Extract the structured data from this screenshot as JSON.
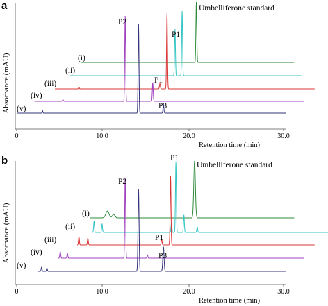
{
  "chart_data": [
    {
      "type": "line",
      "panel": "a",
      "ylabel": "Absorbance (mAU)",
      "xlabel": "Retention time (min)",
      "xticks": [
        "0",
        "10.0",
        "20.0",
        "30.0"
      ],
      "xlim": [
        0,
        30
      ],
      "grid": false,
      "series": [
        {
          "name": "(i)",
          "color": "#2e8b3a",
          "start": 7.2,
          "end": 31.2,
          "peaks": [
            {
              "x": 20.2,
              "h": 1.0,
              "w": 0.05
            }
          ]
        },
        {
          "name": "(ii)",
          "color": "#33c4c4",
          "start": 6.0,
          "end": 32.0,
          "peaks": [
            {
              "x": 17.8,
              "h": 0.72,
              "w": 0.05
            },
            {
              "x": 18.6,
              "h": 1.0,
              "w": 0.05
            }
          ]
        },
        {
          "name": "(iii)",
          "color": "#d93434",
          "start": 4.3,
          "end": 33.5,
          "peaks": [
            {
              "x": 7.0,
              "h": 0.02,
              "w": 0.05
            },
            {
              "x": 16.1,
              "h": 0.07,
              "w": 0.05
            },
            {
              "x": 16.9,
              "h": 1.0,
              "w": 0.05
            }
          ]
        },
        {
          "name": "(iv)",
          "color": "#a040c0",
          "start": 2.0,
          "end": 32.3,
          "peaks": [
            {
              "x": 5.2,
              "h": 0.02,
              "w": 0.05
            },
            {
              "x": 12.2,
              "h": 1.0,
              "w": 0.05
            },
            {
              "x": 15.3,
              "h": 0.22,
              "w": 0.05
            }
          ]
        },
        {
          "name": "(v)",
          "color": "#33337a",
          "start": 0.0,
          "end": 30.3,
          "peaks": [
            {
              "x": 2.9,
              "h": 0.03,
              "w": 0.04
            },
            {
              "x": 13.7,
              "h": 1.0,
              "w": 0.05
            },
            {
              "x": 16.5,
              "h": 0.1,
              "w": 0.05
            }
          ]
        }
      ],
      "annotations": [
        {
          "text": "Umbelliferone standard",
          "x": 20.5
        },
        {
          "text": "P2",
          "x": 11.9
        },
        {
          "text": "P1",
          "x": 18.2
        },
        {
          "text": "P1",
          "x": 16.1
        },
        {
          "text": "P3",
          "x": 16.7
        }
      ]
    },
    {
      "type": "line",
      "panel": "b",
      "ylabel": "Absorbance (mAU)",
      "xlabel": "Retention time (min)",
      "xticks": [
        "0",
        "10.0",
        "20.0",
        "30.0"
      ],
      "xlim": [
        0,
        30
      ],
      "grid": false,
      "series": [
        {
          "name": "(i)",
          "color": "#2e8b3a",
          "start": 8.2,
          "end": 31.2,
          "peaks": [
            {
              "x": 10.2,
              "h": 0.12,
              "w": 0.18
            },
            {
              "x": 10.9,
              "h": 0.06,
              "w": 0.15
            },
            {
              "x": 20.0,
              "h": 1.0,
              "w": 0.09
            }
          ]
        },
        {
          "name": "(ii)",
          "color": "#33c4c4",
          "start": 8.5,
          "end": 35.5,
          "peaks": [
            {
              "x": 8.7,
              "h": 0.16,
              "w": 0.05
            },
            {
              "x": 9.6,
              "h": 0.12,
              "w": 0.05
            },
            {
              "x": 17.4,
              "h": 0.14,
              "w": 0.05
            },
            {
              "x": 17.9,
              "h": 1.0,
              "w": 0.05
            },
            {
              "x": 18.8,
              "h": 0.25,
              "w": 0.05
            },
            {
              "x": 20.3,
              "h": 0.08,
              "w": 0.05
            }
          ]
        },
        {
          "name": "(iii)",
          "color": "#d93434",
          "start": 6.8,
          "end": 33.5,
          "peaks": [
            {
              "x": 7.0,
              "h": 0.12,
              "w": 0.05
            },
            {
              "x": 8.0,
              "h": 0.1,
              "w": 0.05
            },
            {
              "x": 16.3,
              "h": 0.08,
              "w": 0.05
            },
            {
              "x": 17.3,
              "h": 1.0,
              "w": 0.05
            }
          ]
        },
        {
          "name": "(iv)",
          "color": "#a040c0",
          "start": 4.6,
          "end": 32.3,
          "peaks": [
            {
              "x": 4.9,
              "h": 0.08,
              "w": 0.05
            },
            {
              "x": 5.7,
              "h": 0.06,
              "w": 0.05
            },
            {
              "x": 12.2,
              "h": 1.0,
              "w": 0.05
            },
            {
              "x": 14.7,
              "h": 0.04,
              "w": 0.05
            }
          ]
        },
        {
          "name": "(v)",
          "color": "#33337a",
          "start": 2.4,
          "end": 30.3,
          "peaks": [
            {
              "x": 2.8,
              "h": 0.05,
              "w": 0.05
            },
            {
              "x": 3.4,
              "h": 0.04,
              "w": 0.05
            },
            {
              "x": 13.7,
              "h": 1.0,
              "w": 0.06
            },
            {
              "x": 16.5,
              "h": 0.3,
              "w": 0.07
            }
          ]
        }
      ],
      "annotations": [
        {
          "text": "Umbelliferone standard",
          "x": 20.4
        },
        {
          "text": "P2",
          "x": 11.9
        },
        {
          "text": "P1",
          "x": 18.0
        },
        {
          "text": "P1",
          "x": 16.3
        },
        {
          "text": "P3",
          "x": 16.7
        }
      ]
    }
  ]
}
